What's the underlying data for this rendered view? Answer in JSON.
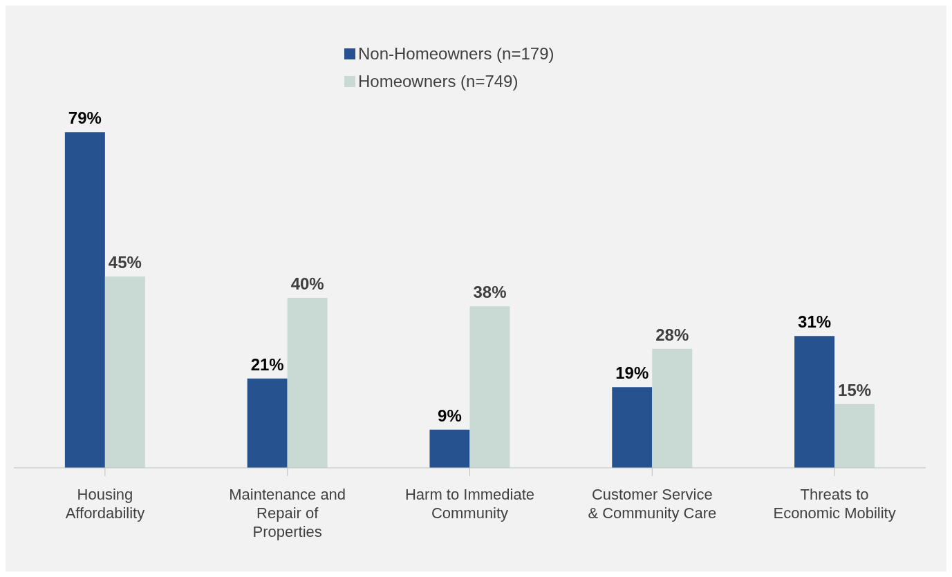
{
  "chart_data": {
    "type": "bar",
    "categories": [
      "Housing Affordability",
      "Maintenance and Repair of Properties",
      "Harm to Immediate Community",
      "Customer Service & Community Care",
      "Threats to Economic Mobility"
    ],
    "series": [
      {
        "name": "Non-Homeowners (n=179)",
        "color": "#26538f",
        "values": [
          79,
          21,
          9,
          19,
          31
        ],
        "value_labels": [
          "79%",
          "21%",
          "9%",
          "19%",
          "31%"
        ]
      },
      {
        "name": "Homeowners (n=749)",
        "color": "#c9d9d3",
        "values": [
          45,
          40,
          38,
          28,
          15
        ],
        "value_labels": [
          "45%",
          "40%",
          "38%",
          "28%",
          "15%"
        ]
      }
    ],
    "legend": "top",
    "grid": false
  }
}
